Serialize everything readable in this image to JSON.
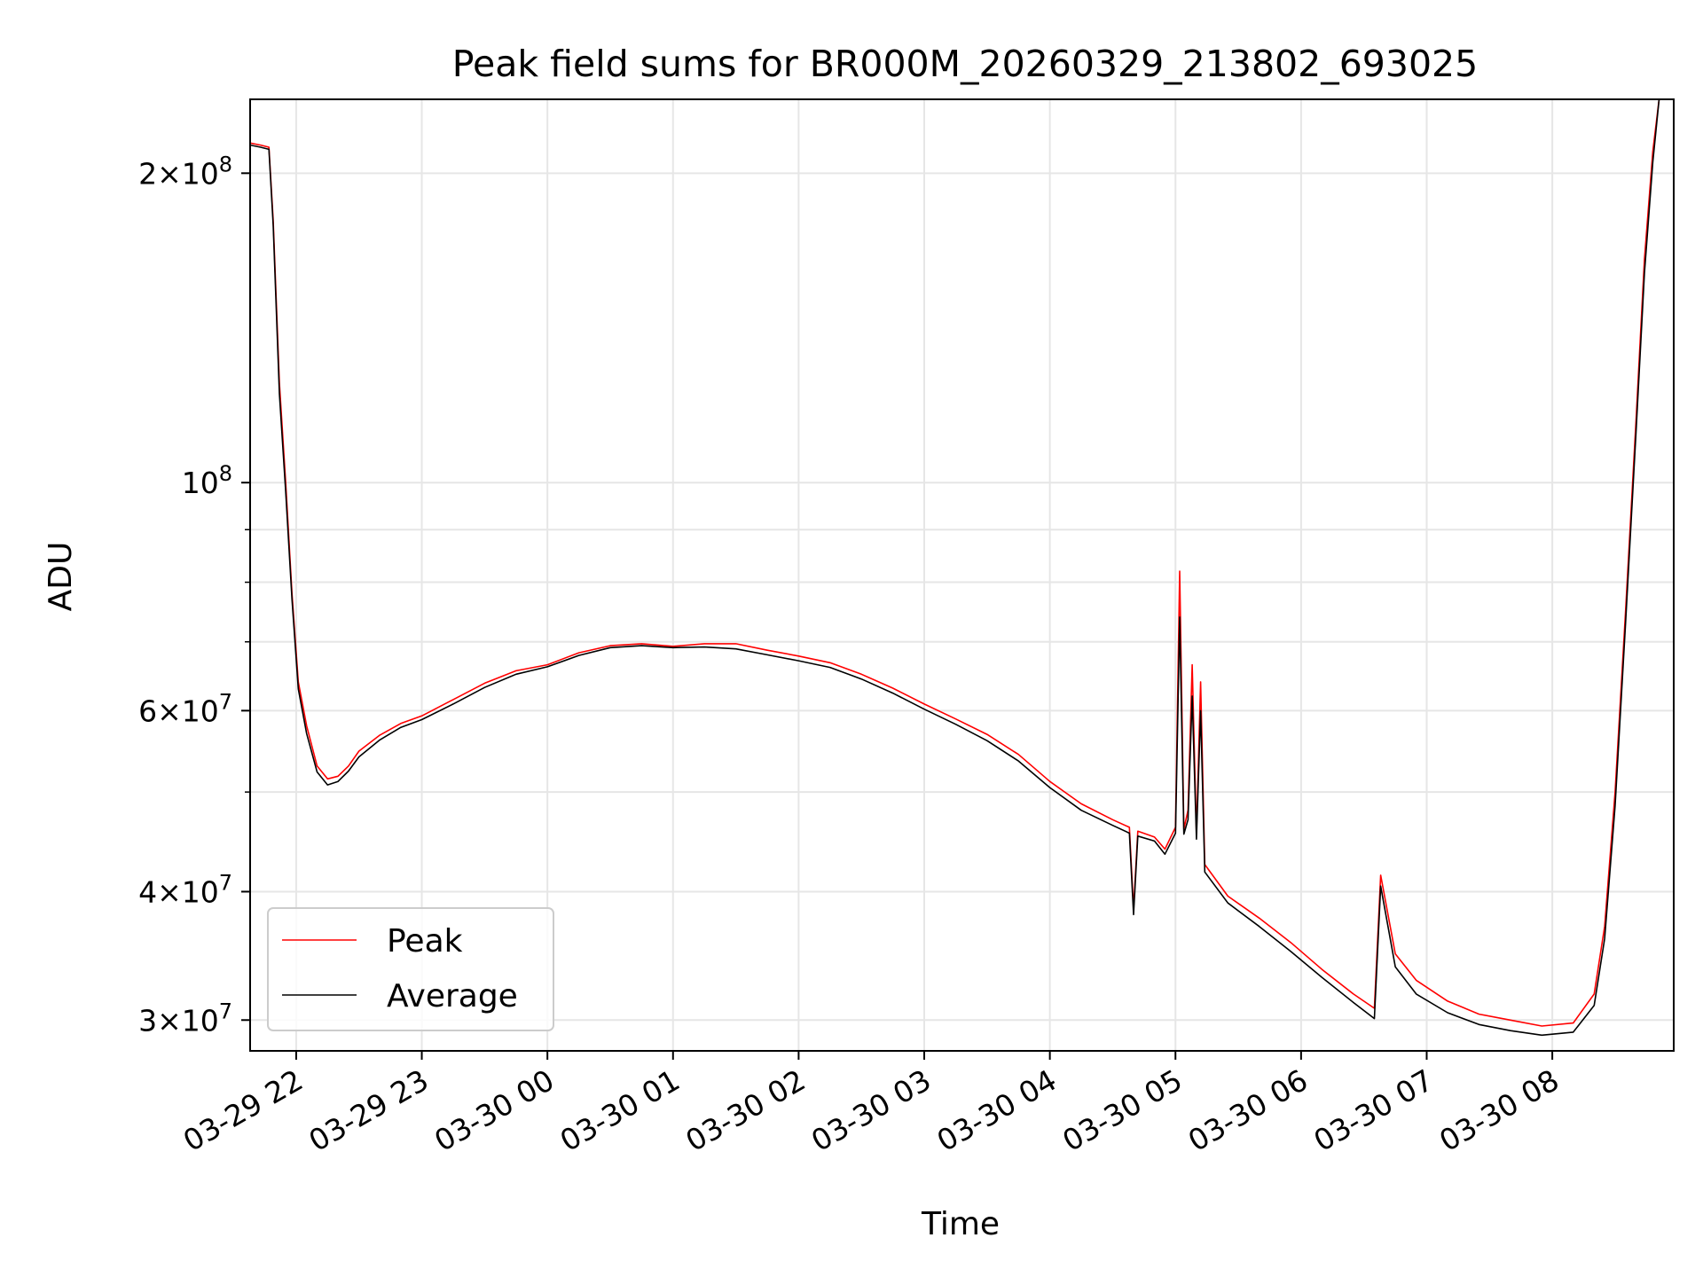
{
  "chart_data": {
    "type": "line",
    "title": "Peak field sums for BR000M_20260329_213802_693025",
    "xlabel": "Time",
    "ylabel": "ADU",
    "y_scale": "log",
    "ylim": [
      28000000,
      236000000
    ],
    "xlim": [
      "2026-03-29 21:38",
      "2026-03-30 08:58"
    ],
    "grid": true,
    "legend_position": "lower-left",
    "x_ticks": [
      {
        "value": "2026-03-29 22:00",
        "label": "03-29 22"
      },
      {
        "value": "2026-03-29 23:00",
        "label": "03-29 23"
      },
      {
        "value": "2026-03-30 00:00",
        "label": "03-30 00"
      },
      {
        "value": "2026-03-30 01:00",
        "label": "03-30 01"
      },
      {
        "value": "2026-03-30 02:00",
        "label": "03-30 02"
      },
      {
        "value": "2026-03-30 03:00",
        "label": "03-30 03"
      },
      {
        "value": "2026-03-30 04:00",
        "label": "03-30 04"
      },
      {
        "value": "2026-03-30 05:00",
        "label": "03-30 05"
      },
      {
        "value": "2026-03-30 06:00",
        "label": "03-30 06"
      },
      {
        "value": "2026-03-30 07:00",
        "label": "03-30 07"
      },
      {
        "value": "2026-03-30 08:00",
        "label": "03-30 08"
      }
    ],
    "y_ticks": [
      {
        "value": 30000000,
        "base": "3",
        "exp": "7"
      },
      {
        "value": 40000000,
        "base": "4",
        "exp": "7"
      },
      {
        "value": 60000000,
        "base": "6",
        "exp": "7"
      },
      {
        "value": 100000000,
        "base": "",
        "exp": "8"
      },
      {
        "value": 200000000,
        "base": "2",
        "exp": "8"
      }
    ],
    "y_minor_ticks": [
      50000000,
      70000000,
      80000000,
      90000000
    ],
    "series": [
      {
        "name": "Peak",
        "color": "#ff0000",
        "points": [
          [
            "2026-03-29 21:38",
            214000000
          ],
          [
            "2026-03-29 21:43",
            213000000
          ],
          [
            "2026-03-29 21:47",
            212000000
          ],
          [
            "2026-03-29 21:49",
            180000000
          ],
          [
            "2026-03-29 21:52",
            125000000
          ],
          [
            "2026-03-29 21:55",
            100000000
          ],
          [
            "2026-03-29 21:58",
            78000000
          ],
          [
            "2026-03-29 22:01",
            64000000
          ],
          [
            "2026-03-29 22:05",
            58000000
          ],
          [
            "2026-03-29 22:10",
            53000000
          ],
          [
            "2026-03-29 22:15",
            51500000
          ],
          [
            "2026-03-29 22:20",
            51800000
          ],
          [
            "2026-03-29 22:25",
            53000000
          ],
          [
            "2026-03-29 22:30",
            54800000
          ],
          [
            "2026-03-29 22:40",
            56800000
          ],
          [
            "2026-03-29 22:50",
            58300000
          ],
          [
            "2026-03-29 23:00",
            59300000
          ],
          [
            "2026-03-29 23:15",
            61500000
          ],
          [
            "2026-03-29 23:30",
            63800000
          ],
          [
            "2026-03-29 23:45",
            65600000
          ],
          [
            "2026-03-30 00:00",
            66500000
          ],
          [
            "2026-03-30 00:15",
            68300000
          ],
          [
            "2026-03-30 00:30",
            69400000
          ],
          [
            "2026-03-30 00:45",
            69700000
          ],
          [
            "2026-03-30 01:00",
            69300000
          ],
          [
            "2026-03-30 01:15",
            69700000
          ],
          [
            "2026-03-30 01:30",
            69700000
          ],
          [
            "2026-03-30 01:45",
            68700000
          ],
          [
            "2026-03-30 02:00",
            67800000
          ],
          [
            "2026-03-30 02:15",
            66800000
          ],
          [
            "2026-03-30 02:30",
            65100000
          ],
          [
            "2026-03-30 02:45",
            63100000
          ],
          [
            "2026-03-30 03:00",
            60900000
          ],
          [
            "2026-03-30 03:15",
            58900000
          ],
          [
            "2026-03-30 03:30",
            56900000
          ],
          [
            "2026-03-30 03:45",
            54400000
          ],
          [
            "2026-03-30 04:00",
            51200000
          ],
          [
            "2026-03-30 04:15",
            48700000
          ],
          [
            "2026-03-30 04:30",
            47000000
          ],
          [
            "2026-03-30 04:38",
            46200000
          ],
          [
            "2026-03-30 04:40",
            38500000
          ],
          [
            "2026-03-30 04:42",
            45800000
          ],
          [
            "2026-03-30 04:50",
            45200000
          ],
          [
            "2026-03-30 04:55",
            44000000
          ],
          [
            "2026-03-30 05:00",
            46200000
          ],
          [
            "2026-03-30 05:02",
            82000000
          ],
          [
            "2026-03-30 05:04",
            46000000
          ],
          [
            "2026-03-30 05:06",
            48000000
          ],
          [
            "2026-03-30 05:08",
            66500000
          ],
          [
            "2026-03-30 05:10",
            45500000
          ],
          [
            "2026-03-30 05:12",
            64000000
          ],
          [
            "2026-03-30 05:14",
            42500000
          ],
          [
            "2026-03-30 05:25",
            39600000
          ],
          [
            "2026-03-30 05:40",
            37700000
          ],
          [
            "2026-03-30 05:55",
            35700000
          ],
          [
            "2026-03-30 06:10",
            33600000
          ],
          [
            "2026-03-30 06:25",
            31800000
          ],
          [
            "2026-03-30 06:35",
            30800000
          ],
          [
            "2026-03-30 06:38",
            41500000
          ],
          [
            "2026-03-30 06:45",
            34800000
          ],
          [
            "2026-03-30 06:55",
            32800000
          ],
          [
            "2026-03-30 07:10",
            31300000
          ],
          [
            "2026-03-30 07:25",
            30400000
          ],
          [
            "2026-03-30 07:40",
            30000000
          ],
          [
            "2026-03-30 07:55",
            29600000
          ],
          [
            "2026-03-30 08:10",
            29800000
          ],
          [
            "2026-03-30 08:20",
            31800000
          ],
          [
            "2026-03-30 08:25",
            37000000
          ],
          [
            "2026-03-30 08:30",
            50000000
          ],
          [
            "2026-03-30 08:35",
            75000000
          ],
          [
            "2026-03-30 08:40",
            115000000
          ],
          [
            "2026-03-30 08:44",
            165000000
          ],
          [
            "2026-03-30 08:48",
            210000000
          ],
          [
            "2026-03-30 08:51",
            236000000
          ]
        ]
      },
      {
        "name": "Average",
        "color": "#000000",
        "points": [
          [
            "2026-03-29 21:38",
            213000000
          ],
          [
            "2026-03-29 21:43",
            212000000
          ],
          [
            "2026-03-29 21:47",
            211000000
          ],
          [
            "2026-03-29 21:49",
            178000000
          ],
          [
            "2026-03-29 21:52",
            122000000
          ],
          [
            "2026-03-29 21:55",
            98000000
          ],
          [
            "2026-03-29 21:58",
            77000000
          ],
          [
            "2026-03-29 22:01",
            63000000
          ],
          [
            "2026-03-29 22:05",
            57000000
          ],
          [
            "2026-03-29 22:10",
            52300000
          ],
          [
            "2026-03-29 22:15",
            50800000
          ],
          [
            "2026-03-29 22:20",
            51200000
          ],
          [
            "2026-03-29 22:25",
            52400000
          ],
          [
            "2026-03-29 22:30",
            54100000
          ],
          [
            "2026-03-29 22:40",
            56200000
          ],
          [
            "2026-03-29 22:50",
            57800000
          ],
          [
            "2026-03-29 23:00",
            58800000
          ],
          [
            "2026-03-29 23:15",
            60900000
          ],
          [
            "2026-03-29 23:30",
            63200000
          ],
          [
            "2026-03-29 23:45",
            65100000
          ],
          [
            "2026-03-30 00:00",
            66200000
          ],
          [
            "2026-03-30 00:15",
            67900000
          ],
          [
            "2026-03-30 00:30",
            69100000
          ],
          [
            "2026-03-30 00:45",
            69400000
          ],
          [
            "2026-03-30 01:00",
            69100000
          ],
          [
            "2026-03-30 01:15",
            69200000
          ],
          [
            "2026-03-30 01:30",
            68900000
          ],
          [
            "2026-03-30 01:45",
            68000000
          ],
          [
            "2026-03-30 02:00",
            67100000
          ],
          [
            "2026-03-30 02:15",
            66100000
          ],
          [
            "2026-03-30 02:30",
            64400000
          ],
          [
            "2026-03-30 02:45",
            62400000
          ],
          [
            "2026-03-30 03:00",
            60200000
          ],
          [
            "2026-03-30 03:15",
            58200000
          ],
          [
            "2026-03-30 03:30",
            56100000
          ],
          [
            "2026-03-30 03:45",
            53600000
          ],
          [
            "2026-03-30 04:00",
            50500000
          ],
          [
            "2026-03-30 04:15",
            48000000
          ],
          [
            "2026-03-30 04:30",
            46400000
          ],
          [
            "2026-03-30 04:38",
            45600000
          ],
          [
            "2026-03-30 04:40",
            38000000
          ],
          [
            "2026-03-30 04:42",
            45300000
          ],
          [
            "2026-03-30 04:50",
            44800000
          ],
          [
            "2026-03-30 04:55",
            43500000
          ],
          [
            "2026-03-30 05:00",
            45600000
          ],
          [
            "2026-03-30 05:02",
            74000000
          ],
          [
            "2026-03-30 05:04",
            45500000
          ],
          [
            "2026-03-30 05:06",
            47000000
          ],
          [
            "2026-03-30 05:08",
            62000000
          ],
          [
            "2026-03-30 05:10",
            45000000
          ],
          [
            "2026-03-30 05:12",
            60000000
          ],
          [
            "2026-03-30 05:14",
            41800000
          ],
          [
            "2026-03-30 05:25",
            39000000
          ],
          [
            "2026-03-30 05:40",
            37000000
          ],
          [
            "2026-03-30 05:55",
            35000000
          ],
          [
            "2026-03-30 06:10",
            33000000
          ],
          [
            "2026-03-30 06:25",
            31200000
          ],
          [
            "2026-03-30 06:35",
            30100000
          ],
          [
            "2026-03-30 06:38",
            40500000
          ],
          [
            "2026-03-30 06:45",
            33800000
          ],
          [
            "2026-03-30 06:55",
            31800000
          ],
          [
            "2026-03-30 07:10",
            30500000
          ],
          [
            "2026-03-30 07:25",
            29700000
          ],
          [
            "2026-03-30 07:40",
            29300000
          ],
          [
            "2026-03-30 07:55",
            29000000
          ],
          [
            "2026-03-30 08:10",
            29200000
          ],
          [
            "2026-03-30 08:20",
            31000000
          ],
          [
            "2026-03-30 08:25",
            36000000
          ],
          [
            "2026-03-30 08:30",
            48500000
          ],
          [
            "2026-03-30 08:35",
            73000000
          ],
          [
            "2026-03-30 08:40",
            112000000
          ],
          [
            "2026-03-30 08:44",
            160000000
          ],
          [
            "2026-03-30 08:48",
            205000000
          ],
          [
            "2026-03-30 08:51",
            236000000
          ]
        ]
      }
    ]
  }
}
